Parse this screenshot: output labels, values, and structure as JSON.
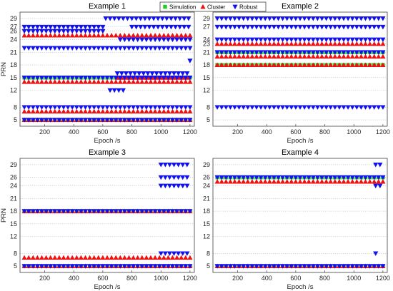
{
  "legend": {
    "items": [
      {
        "label": "Simulation",
        "marker": "square",
        "color": "#22cc22"
      },
      {
        "label": "Cluster",
        "marker": "triangle-up",
        "color": "#ee1111"
      },
      {
        "label": "Robust",
        "marker": "triangle-down",
        "color": "#1111ee"
      }
    ],
    "placement": "top-center"
  },
  "chart_data": [
    {
      "type": "scatter",
      "title": "Example 1",
      "xlabel": "Epoch /s",
      "ylabel": "PRN",
      "xlim": [
        30,
        1230
      ],
      "ylim": [
        3.5,
        30.5
      ],
      "xticks": [
        200,
        400,
        600,
        800,
        1000,
        1200
      ],
      "yticks": [
        5,
        8,
        12,
        15,
        18,
        21,
        24,
        26,
        27,
        29
      ],
      "grid": "horizontal dotted",
      "series": [
        {
          "name": "Simulation",
          "marker": "square",
          "color": "#22cc22",
          "points": [
            {
              "prn": 5,
              "from": 60,
              "to": 1200
            },
            {
              "prn": 15,
              "from": 60,
              "to": 1200
            }
          ]
        },
        {
          "name": "Cluster",
          "marker": "triangle-up",
          "color": "#ee1111",
          "points": [
            {
              "prn": 5,
              "from": 60,
              "to": 1200
            },
            {
              "prn": 7,
              "from": 60,
              "to": 1200
            },
            {
              "prn": 14,
              "from": 60,
              "to": 1200
            },
            {
              "prn": 25,
              "from": 60,
              "to": 1200
            },
            {
              "prn": 15,
              "from": 700,
              "to": 1200
            }
          ]
        },
        {
          "name": "Robust",
          "marker": "triangle-down",
          "color": "#1111ee",
          "points": [
            {
              "prn": 5,
              "from": 60,
              "to": 1200
            },
            {
              "prn": 8,
              "from": 60,
              "to": 1200
            },
            {
              "prn": 15,
              "from": 60,
              "to": 1200
            },
            {
              "prn": 22,
              "from": 60,
              "to": 1200
            },
            {
              "prn": 26,
              "from": 60,
              "to": 600
            },
            {
              "prn": 27,
              "from": 60,
              "to": 600
            },
            {
              "prn": 24,
              "from": 720,
              "to": 1200
            },
            {
              "prn": 27,
              "from": 800,
              "to": 1200
            },
            {
              "prn": 29,
              "from": 620,
              "to": 1200
            },
            {
              "prn": 12,
              "from": 650,
              "to": 750
            },
            {
              "prn": 16,
              "from": 700,
              "to": 1200
            },
            {
              "prn": 19,
              "from": 1200,
              "to": 1200
            }
          ]
        }
      ]
    },
    {
      "type": "scatter",
      "title": "Example 2",
      "xlabel": "Epoch /s",
      "ylabel": "",
      "xlim": [
        30,
        1230
      ],
      "ylim": [
        3.5,
        30.5
      ],
      "xticks": [
        200,
        400,
        600,
        800,
        1000,
        1200
      ],
      "yticks": [
        5,
        8,
        12,
        15,
        18,
        21,
        23,
        24,
        27,
        29
      ],
      "grid": "horizontal dotted",
      "series": [
        {
          "name": "Simulation",
          "marker": "square",
          "color": "#22cc22",
          "points": [
            {
              "prn": 18,
              "from": 60,
              "to": 1200
            },
            {
              "prn": 21,
              "from": 60,
              "to": 1200
            }
          ]
        },
        {
          "name": "Cluster",
          "marker": "triangle-up",
          "color": "#ee1111",
          "points": [
            {
              "prn": 18,
              "from": 60,
              "to": 1200
            },
            {
              "prn": 20,
              "from": 60,
              "to": 1200
            },
            {
              "prn": 23,
              "from": 60,
              "to": 1200
            }
          ]
        },
        {
          "name": "Robust",
          "marker": "triangle-down",
          "color": "#1111ee",
          "points": [
            {
              "prn": 8,
              "from": 60,
              "to": 1200
            },
            {
              "prn": 21,
              "from": 60,
              "to": 1200
            },
            {
              "prn": 24,
              "from": 60,
              "to": 1200
            },
            {
              "prn": 27,
              "from": 60,
              "to": 1200
            },
            {
              "prn": 29,
              "from": 60,
              "to": 1200
            }
          ]
        }
      ]
    },
    {
      "type": "scatter",
      "title": "Example 3",
      "xlabel": "Epoch /s",
      "ylabel": "PRN",
      "xlim": [
        30,
        1230
      ],
      "ylim": [
        3.5,
        30.5
      ],
      "xticks": [
        200,
        400,
        600,
        800,
        1000,
        1200
      ],
      "yticks": [
        5,
        8,
        12,
        15,
        18,
        21,
        24,
        26,
        29
      ],
      "grid": "horizontal dotted",
      "series": [
        {
          "name": "Simulation",
          "marker": "square",
          "color": "#22cc22",
          "points": [
            {
              "prn": 5,
              "from": 60,
              "to": 1200
            },
            {
              "prn": 18,
              "from": 60,
              "to": 1200
            }
          ]
        },
        {
          "name": "Cluster",
          "marker": "triangle-up",
          "color": "#ee1111",
          "points": [
            {
              "prn": 5,
              "from": 60,
              "to": 1200
            },
            {
              "prn": 7,
              "from": 60,
              "to": 1200
            },
            {
              "prn": 18,
              "from": 60,
              "to": 1200
            }
          ]
        },
        {
          "name": "Robust",
          "marker": "triangle-down",
          "color": "#1111ee",
          "points": [
            {
              "prn": 5,
              "from": 60,
              "to": 1200
            },
            {
              "prn": 18,
              "from": 60,
              "to": 1200
            },
            {
              "prn": 8,
              "from": 1000,
              "to": 1200
            },
            {
              "prn": 24,
              "from": 1000,
              "to": 1200
            },
            {
              "prn": 26,
              "from": 1000,
              "to": 1200
            },
            {
              "prn": 29,
              "from": 1000,
              "to": 1200
            }
          ]
        }
      ]
    },
    {
      "type": "scatter",
      "title": "Example 4",
      "xlabel": "Epoch /s",
      "ylabel": "",
      "xlim": [
        30,
        1230
      ],
      "ylim": [
        3.5,
        30.5
      ],
      "xticks": [
        200,
        400,
        600,
        800,
        1000,
        1200
      ],
      "yticks": [
        5,
        8,
        12,
        15,
        18,
        21,
        24,
        26,
        29
      ],
      "grid": "horizontal dotted",
      "series": [
        {
          "name": "Simulation",
          "marker": "square",
          "color": "#22cc22",
          "points": [
            {
              "prn": 5,
              "from": 60,
              "to": 1200
            },
            {
              "prn": 26,
              "from": 60,
              "to": 1200
            }
          ]
        },
        {
          "name": "Cluster",
          "marker": "triangle-up",
          "color": "#ee1111",
          "points": [
            {
              "prn": 5,
              "from": 60,
              "to": 1200
            },
            {
              "prn": 25,
              "from": 60,
              "to": 1200
            }
          ]
        },
        {
          "name": "Robust",
          "marker": "triangle-down",
          "color": "#1111ee",
          "points": [
            {
              "prn": 5,
              "from": 60,
              "to": 1200
            },
            {
              "prn": 26,
              "from": 60,
              "to": 1200
            },
            {
              "prn": 8,
              "from": 1150,
              "to": 1150
            },
            {
              "prn": 24,
              "from": 1150,
              "to": 1200
            },
            {
              "prn": 29,
              "from": 1150,
              "to": 1200
            }
          ]
        }
      ]
    }
  ]
}
